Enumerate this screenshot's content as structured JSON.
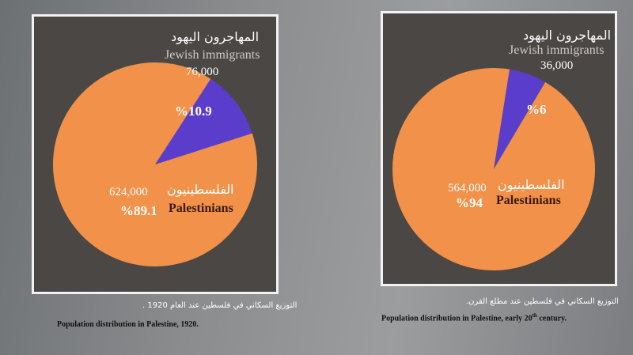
{
  "chart_data": [
    {
      "type": "pie",
      "caption_ar": "التوزيع السكاني في فلسطين عند العام 1920 .",
      "caption_en": "Population distribution in Palestine, 1920.",
      "slices": [
        {
          "label_ar": "المهاجرون اليهود",
          "label_en": "Jewish immigrants",
          "value_label": "76,000",
          "percent_label": "%10.9",
          "percent": 10.9,
          "color": "#5a3ecb"
        },
        {
          "label_ar": "الفلسطينيون",
          "label_en": "Palestinians",
          "value_label": "624,000",
          "percent_label": "%89.1",
          "percent": 89.1,
          "color": "#f1914a"
        }
      ]
    },
    {
      "type": "pie",
      "caption_ar": "التوزيع السكاني في فلسطين عند مطلع القرن.",
      "caption_en": "Population distribution in Palestine, early 20th century.",
      "slices": [
        {
          "label_ar": "المهاجرون اليهود",
          "label_en": "Jewish immigrants",
          "value_label": "36,000",
          "percent_label": "%6",
          "percent": 6,
          "color": "#5a3ecb"
        },
        {
          "label_ar": "الفلسطينيون",
          "label_en": "Palestinians",
          "value_label": "564,000",
          "percent_label": "%94",
          "percent": 94,
          "color": "#f1914a"
        }
      ]
    }
  ]
}
